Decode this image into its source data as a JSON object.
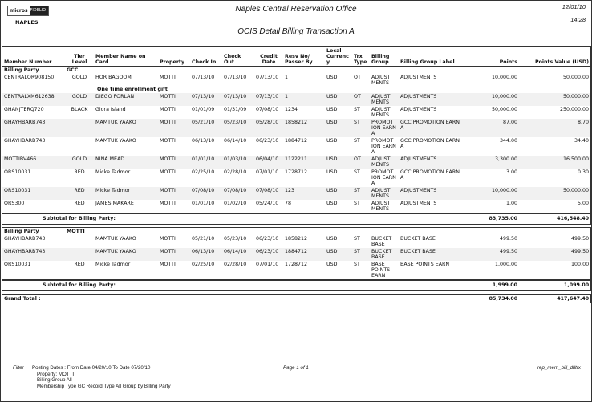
{
  "header": {
    "logo": {
      "left": "micros",
      "right": "FIDELIO"
    },
    "city": "NAPLES",
    "office": "Naples Central Reservation Office",
    "report_title": "OCIS Detail Billing Transaction A",
    "date": "12/01/10",
    "time": "14:28"
  },
  "columns": [
    "Member Number",
    "Tier Level",
    "Member Name on Card",
    "Property",
    "Check In",
    "Check Out",
    "Credit Date",
    "Resv No/ Passer By",
    "Local Currency",
    "Trx Type",
    "Billing Group",
    "Billing Group Label",
    "Points",
    "Points Value (USD)"
  ],
  "groups": [
    {
      "label": "Billing Party",
      "party": "GCC",
      "rows": [
        {
          "member": "CENTRALQR908150",
          "tier": "GOLD",
          "name": "HOR BAGOOMI",
          "property": "MOTTI",
          "check_in": "07/13/10",
          "check_out": "07/13/10",
          "credit": "07/13/10",
          "resv": "1",
          "currency": "USD",
          "trx": "OT",
          "group": "ADJUST MENTS",
          "group_label": "ADJUSTMENTS",
          "points": "10,000.00",
          "value": "50,000.00",
          "note": "One time enrollment gift"
        },
        {
          "member": "CENTRALXM612638",
          "tier": "GOLD",
          "name": "DIEGO FORLAN",
          "property": "MOTTI",
          "check_in": "07/13/10",
          "check_out": "07/13/10",
          "credit": "07/13/10",
          "resv": "1",
          "currency": "USD",
          "trx": "OT",
          "group": "ADJUST MENTS",
          "group_label": "ADJUSTMENTS",
          "points": "10,000.00",
          "value": "50,000.00"
        },
        {
          "member": "GHANJTERQ720",
          "tier": "BLACK",
          "name": "Giora Island",
          "property": "MOTTI",
          "check_in": "01/01/09",
          "check_out": "01/31/09",
          "credit": "07/08/10",
          "resv": "1234",
          "currency": "USD",
          "trx": "ST",
          "group": "ADJUST MENTS",
          "group_label": "ADJUSTMENTS",
          "points": "50,000.00",
          "value": "250,000.00"
        },
        {
          "member": "GHAYHBARB743",
          "tier": "",
          "name": "MAMTUK YAAKO",
          "property": "MOTTI",
          "check_in": "05/21/10",
          "check_out": "05/23/10",
          "credit": "05/28/10",
          "resv": "1858212",
          "currency": "USD",
          "trx": "ST",
          "group": "PROMOT ION EARN A",
          "group_label": "GCC PROMOTION EARN A",
          "points": "87.00",
          "value": "8.70"
        },
        {
          "member": "GHAYHBARB743",
          "tier": "",
          "name": "MAMTUK YAAKO",
          "property": "MOTTI",
          "check_in": "06/13/10",
          "check_out": "06/14/10",
          "credit": "06/23/10",
          "resv": "1884712",
          "currency": "USD",
          "trx": "ST",
          "group": "PROMOT ION EARN A",
          "group_label": "GCC PROMOTION EARN A",
          "points": "344.00",
          "value": "34.40"
        },
        {
          "member": "MOTTIBV466",
          "tier": "GOLD",
          "name": "NINA MEAD",
          "property": "MOTTI",
          "check_in": "01/01/10",
          "check_out": "01/03/10",
          "credit": "06/04/10",
          "resv": "1122211",
          "currency": "USD",
          "trx": "OT",
          "group": "ADJUST MENTS",
          "group_label": "ADJUSTMENTS",
          "points": "3,300.00",
          "value": "16,500.00"
        },
        {
          "member": "ORS10031",
          "tier": "RED",
          "name": "Micke Tadmor",
          "property": "MOTTI",
          "check_in": "02/25/10",
          "check_out": "02/28/10",
          "credit": "07/01/10",
          "resv": "1728712",
          "currency": "USD",
          "trx": "ST",
          "group": "PROMOT ION EARN A",
          "group_label": "GCC PROMOTION EARN A",
          "points": "3.00",
          "value": "0.30"
        },
        {
          "member": "ORS10031",
          "tier": "RED",
          "name": "Micke Tadmor",
          "property": "MOTTI",
          "check_in": "07/08/10",
          "check_out": "07/08/10",
          "credit": "07/08/10",
          "resv": "123",
          "currency": "USD",
          "trx": "ST",
          "group": "ADJUST MENTS",
          "group_label": "ADJUSTMENTS",
          "points": "10,000.00",
          "value": "50,000.00"
        },
        {
          "member": "ORS300",
          "tier": "RED",
          "name": "JAMES MAKARE",
          "property": "MOTTI",
          "check_in": "01/01/10",
          "check_out": "01/02/10",
          "credit": "05/24/10",
          "resv": "78",
          "currency": "USD",
          "trx": "ST",
          "group": "ADJUST MENTS",
          "group_label": "ADJUSTMENTS",
          "points": "1.00",
          "value": "5.00"
        }
      ],
      "subtotal_label": "Subtotal for Billing Party:",
      "subtotal_points": "83,735.00",
      "subtotal_value": "416,548.40"
    },
    {
      "label": "Billing Party",
      "party": "MOTTI",
      "rows": [
        {
          "member": "GHAYHBARB743",
          "tier": "",
          "name": "MAMTUK YAAKO",
          "property": "MOTTI",
          "check_in": "05/21/10",
          "check_out": "05/23/10",
          "credit": "06/23/10",
          "resv": "1858212",
          "currency": "USD",
          "trx": "ST",
          "group": "BUCKET BASE",
          "group_label": "BUCKET BASE",
          "points": "499.50",
          "value": "499.50"
        },
        {
          "member": "GHAYHBARB743",
          "tier": "",
          "name": "MAMTUK YAAKO",
          "property": "MOTTI",
          "check_in": "06/13/10",
          "check_out": "06/14/10",
          "credit": "06/23/10",
          "resv": "1884712",
          "currency": "USD",
          "trx": "ST",
          "group": "BUCKET BASE",
          "group_label": "BUCKET BASE",
          "points": "499.50",
          "value": "499.50"
        },
        {
          "member": "ORS10031",
          "tier": "RED",
          "name": "Micke Tadmor",
          "property": "MOTTI",
          "check_in": "02/25/10",
          "check_out": "02/28/10",
          "credit": "07/01/10",
          "resv": "1728712",
          "currency": "USD",
          "trx": "ST",
          "group": "BASE POINTS EARN",
          "group_label": "BASE POINTS EARN",
          "points": "1,000.00",
          "value": "100.00"
        }
      ],
      "subtotal_label": "Subtotal for Billing Party:",
      "subtotal_points": "1,999.00",
      "subtotal_value": "1,099.00"
    }
  ],
  "grand_total": {
    "label": "Grand Total :",
    "points": "85,734.00",
    "value": "417,647.40"
  },
  "footer": {
    "filter_label": "Filter",
    "lines": [
      "Posting Dates :   From Date 04/20/10   To Date 07/20/10",
      "Property:  MOTTI",
      "Billing Group All",
      "Membership Type GC   Record Type All   Group by Billing Party"
    ],
    "page": "Page 1 of 1",
    "report_id": "rep_mem_bill_dtltrx"
  }
}
